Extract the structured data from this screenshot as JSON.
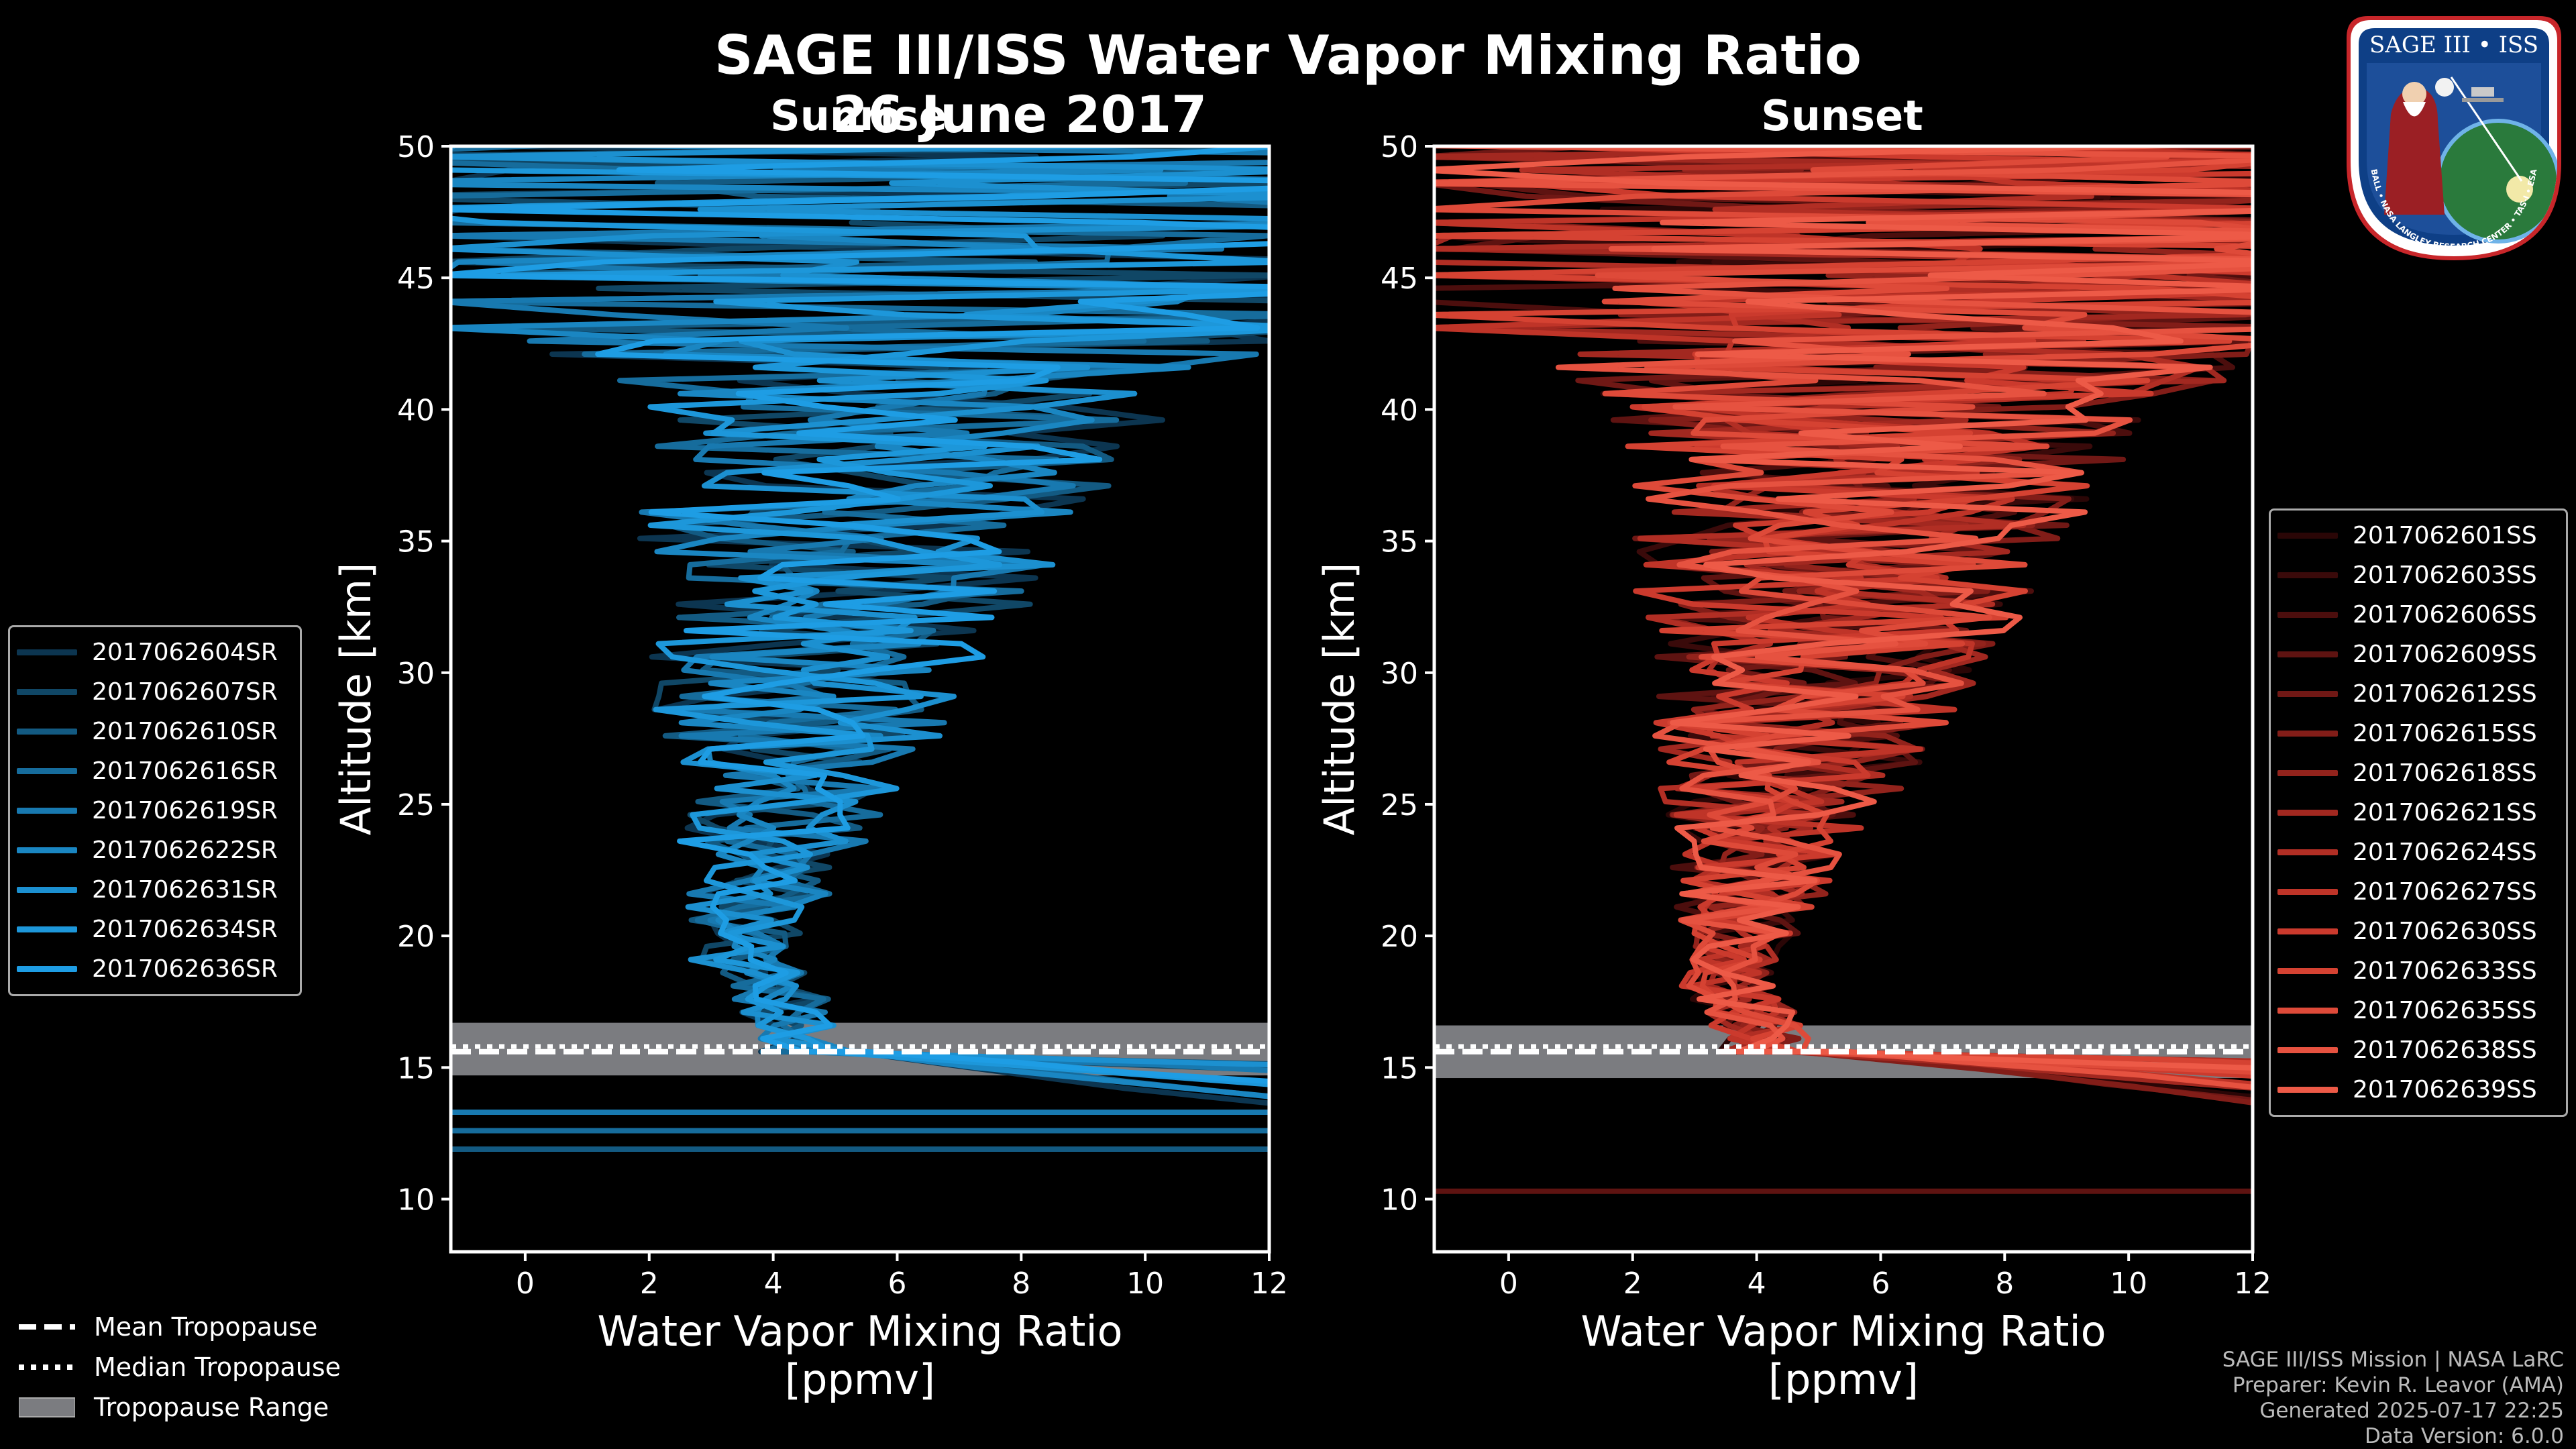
{
  "title": "SAGE III/ISS Water Vapor Mixing Ratio",
  "date": "26 June 2017",
  "logo": {
    "name": "SAGE III • ISS",
    "ring_text": "BALL • NASA LANGLEY RESEARCH CENTER • TAS-I • ESA"
  },
  "credits": [
    "SAGE III/ISS Mission | NASA LaRC",
    "Preparer: Kevin R. Leavor (AMA)",
    "Generated 2025-07-17 22:25",
    "Data Version: 6.0.0"
  ],
  "tropopause_legend": {
    "mean": "Mean Tropopause",
    "median": "Median Tropopause",
    "range": "Tropopause Range"
  },
  "chart_data": [
    {
      "type": "line",
      "title": "Sunrise",
      "xlabel": "Water Vapor Mixing Ratio\n[ppmv]",
      "ylabel": "Altitude [km]",
      "xlim": [
        -1.2,
        12
      ],
      "ylim": [
        8,
        50
      ],
      "xticks": [
        0,
        2,
        4,
        6,
        8,
        10,
        12
      ],
      "yticks": [
        10,
        15,
        20,
        25,
        30,
        35,
        40,
        45,
        50
      ],
      "tropopause": {
        "mean": 15.6,
        "median": 15.8,
        "range": [
          14.7,
          16.7
        ]
      },
      "series_names": [
        "2017062604SR",
        "2017062607SR",
        "2017062610SR",
        "2017062616SR",
        "2017062619SR",
        "2017062622SR",
        "2017062631SR",
        "2017062634SR",
        "2017062636SR"
      ],
      "series_colors": [
        "#0c3550",
        "#104766",
        "#135a82",
        "#166c9c",
        "#1879b0",
        "#1a86c2",
        "#1c90d0",
        "#1d97da",
        "#1e9de4"
      ]
    },
    {
      "type": "line",
      "title": "Sunset",
      "xlabel": "Water Vapor Mixing Ratio\n[ppmv]",
      "ylabel": "Altitude [km]",
      "xlim": [
        -1.2,
        12
      ],
      "ylim": [
        8,
        50
      ],
      "xticks": [
        0,
        2,
        4,
        6,
        8,
        10,
        12
      ],
      "yticks": [
        10,
        15,
        20,
        25,
        30,
        35,
        40,
        45,
        50
      ],
      "tropopause": {
        "mean": 15.6,
        "median": 15.8,
        "range": [
          14.6,
          16.6
        ]
      },
      "series_names": [
        "2017062601SS",
        "2017062603SS",
        "2017062606SS",
        "2017062609SS",
        "2017062612SS",
        "2017062615SS",
        "2017062618SS",
        "2017062621SS",
        "2017062624SS",
        "2017062627SS",
        "2017062630SS",
        "2017062633SS",
        "2017062635SS",
        "2017062638SS",
        "2017062639SS"
      ],
      "series_colors": [
        "#2a0606",
        "#3a0a0a",
        "#4c0e0d",
        "#5e1311",
        "#701815",
        "#821d18",
        "#92231c",
        "#a22820",
        "#b12e24",
        "#bf3428",
        "#cb3a2d",
        "#d54232",
        "#de4a39",
        "#e65240",
        "#ed5a47"
      ]
    }
  ]
}
